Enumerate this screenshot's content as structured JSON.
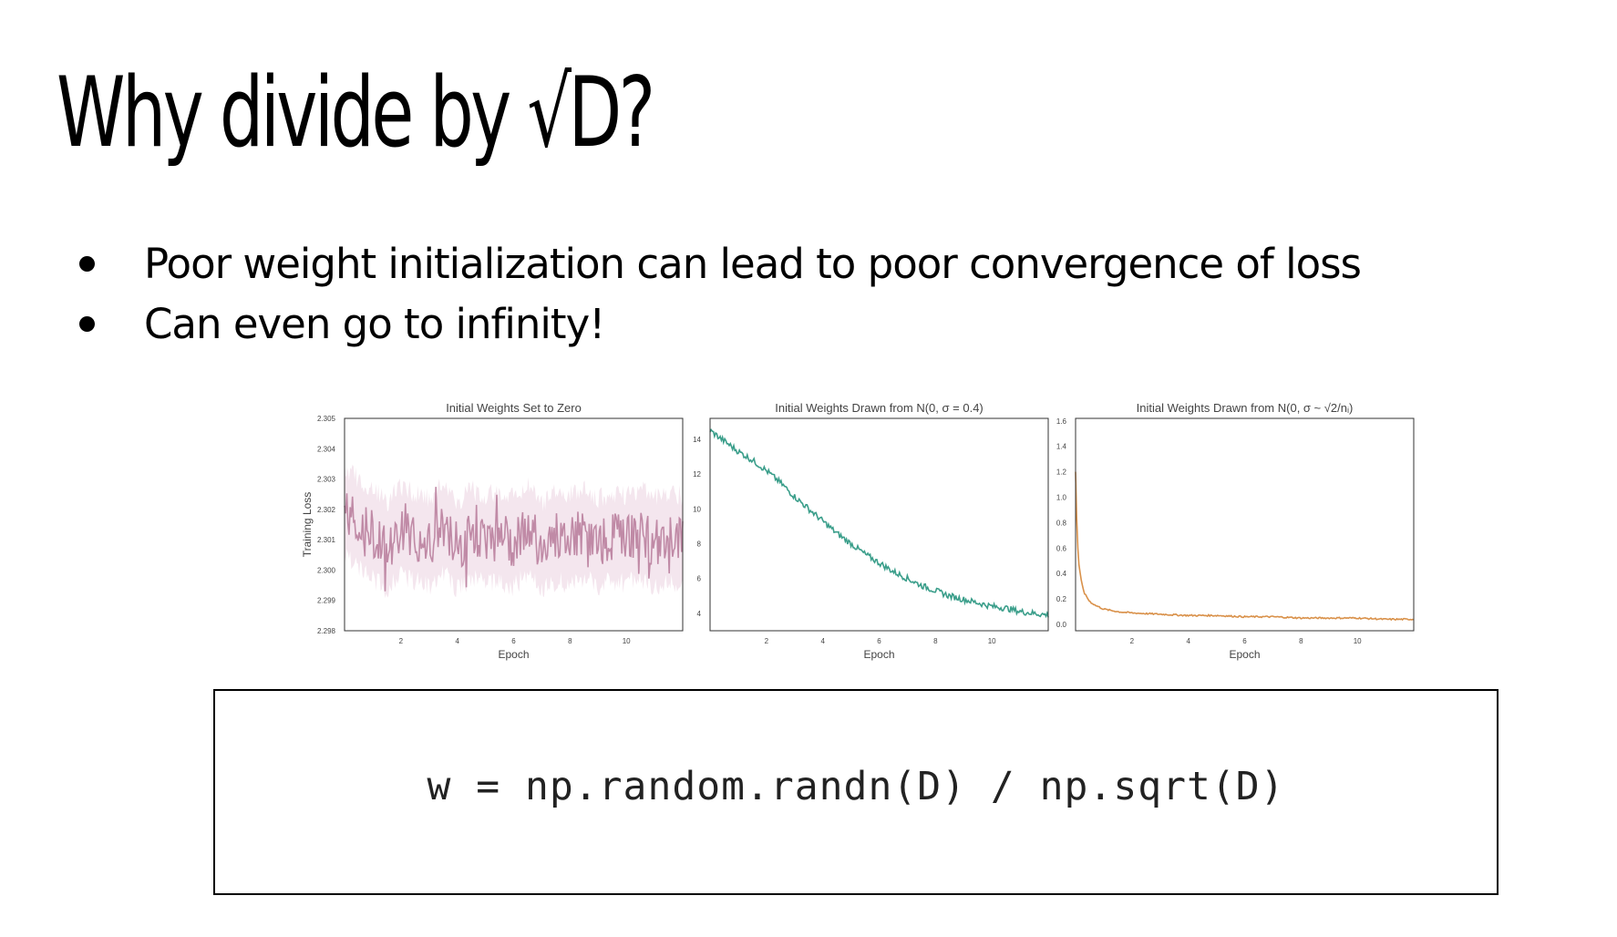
{
  "slide": {
    "title": "Why divide by √D?",
    "bullets": [
      "Poor weight initialization can lead to poor convergence of loss",
      "Can even go to infinity!"
    ],
    "code": "w = np.random.randn(D) / np.sqrt(D)"
  },
  "chart_data": [
    {
      "type": "line",
      "title": "Initial Weights Set to Zero",
      "xlabel": "Epoch",
      "ylabel": "Training Loss",
      "xlim": [
        0,
        12
      ],
      "ylim": [
        2.298,
        2.305
      ],
      "xticks": [
        2,
        4,
        6,
        8,
        10
      ],
      "yticks": [
        2.298,
        2.299,
        2.3,
        2.301,
        2.302,
        2.303,
        2.304,
        2.305
      ],
      "ytick_labels": [
        "2.298",
        "2.299",
        "2.300",
        "2.301",
        "2.302",
        "2.303",
        "2.304",
        "2.305"
      ],
      "color": "#c08aa6",
      "band_color": "#ecd6e2",
      "series": [
        {
          "x": [
            0,
            0.5,
            1,
            1.5,
            2,
            2.5,
            3,
            3.5,
            4,
            4.5,
            5,
            5.5,
            6,
            6.5,
            7,
            7.5,
            8,
            8.5,
            9,
            9.5,
            10,
            10.5,
            11,
            11.5,
            12
          ],
          "values": [
            2.302,
            2.3015,
            2.3012,
            2.3008,
            2.3013,
            2.3011,
            2.3009,
            2.3014,
            2.3008,
            2.3012,
            2.301,
            2.3011,
            2.3009,
            2.3013,
            2.3008,
            2.3011,
            2.301,
            2.3012,
            2.3009,
            2.3011,
            2.301,
            2.3012,
            2.3009,
            2.3011,
            2.301
          ]
        }
      ]
    },
    {
      "type": "line",
      "title": "Initial Weights Drawn from N(0, σ = 0.4)",
      "xlabel": "Epoch",
      "ylabel": "",
      "xlim": [
        0,
        12
      ],
      "ylim": [
        3,
        15.2
      ],
      "xticks": [
        2,
        4,
        6,
        8,
        10
      ],
      "yticks": [
        4,
        6,
        8,
        10,
        12,
        14
      ],
      "ytick_labels": [
        "4",
        "6",
        "8",
        "10",
        "12",
        "14"
      ],
      "color": "#3a9e8a",
      "series": [
        {
          "x": [
            0,
            0.5,
            1,
            1.5,
            2,
            2.5,
            3,
            3.5,
            4,
            4.5,
            5,
            5.5,
            6,
            6.5,
            7,
            7.5,
            8,
            8.5,
            9,
            9.5,
            10,
            10.5,
            11,
            11.5,
            12
          ],
          "values": [
            14.5,
            13.9,
            13.3,
            12.8,
            12.2,
            11.5,
            10.7,
            10.0,
            9.3,
            8.6,
            8.0,
            7.4,
            6.9,
            6.4,
            6.0,
            5.6,
            5.3,
            5.0,
            4.8,
            4.6,
            4.4,
            4.3,
            4.1,
            4.0,
            3.9
          ]
        }
      ]
    },
    {
      "type": "line",
      "title": "Initial Weights Drawn from N(0, σ ~ √2/nᵢ)",
      "xlabel": "Epoch",
      "ylabel": "",
      "xlim": [
        0,
        12
      ],
      "ylim": [
        -0.05,
        1.62
      ],
      "xticks": [
        2,
        4,
        6,
        8,
        10
      ],
      "yticks": [
        0.0,
        0.2,
        0.4,
        0.6,
        0.8,
        1.0,
        1.2,
        1.4,
        1.6
      ],
      "ytick_labels": [
        "0.0",
        "0.2",
        "0.4",
        "0.6",
        "0.8",
        "1.0",
        "1.2",
        "1.4",
        "1.6"
      ],
      "color": "#d9914a",
      "series": [
        {
          "x": [
            0,
            0.05,
            0.1,
            0.2,
            0.3,
            0.5,
            0.7,
            1,
            1.5,
            2,
            3,
            4,
            5,
            6,
            7,
            8,
            9,
            10,
            11,
            12
          ],
          "values": [
            1.2,
            0.75,
            0.5,
            0.35,
            0.25,
            0.18,
            0.15,
            0.12,
            0.1,
            0.09,
            0.08,
            0.07,
            0.07,
            0.06,
            0.06,
            0.05,
            0.05,
            0.05,
            0.04,
            0.04
          ]
        }
      ]
    }
  ]
}
